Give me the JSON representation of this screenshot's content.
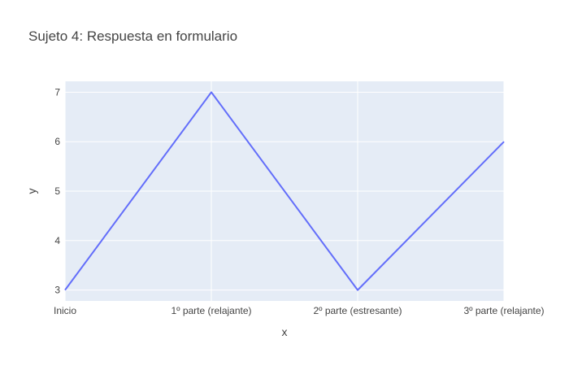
{
  "chart_data": {
    "type": "line",
    "title": "Sujeto 4: Respuesta en formulario",
    "xlabel": "x",
    "ylabel": "y",
    "categories": [
      "Inicio",
      "1º parte (relajante)",
      "2º parte (estresante)",
      "3º parte (relajante)"
    ],
    "series": [
      {
        "values": [
          3,
          7,
          3,
          6
        ]
      }
    ],
    "ylim": [
      2.78,
      7.22
    ],
    "yticks": [
      "3",
      "4",
      "5",
      "6",
      "7"
    ],
    "grid": true,
    "legend": "none",
    "colors": {
      "plot_bg": "#E5ECF6",
      "grid": "#FFFFFF",
      "line": "#636EFA",
      "text": "#444444"
    }
  }
}
